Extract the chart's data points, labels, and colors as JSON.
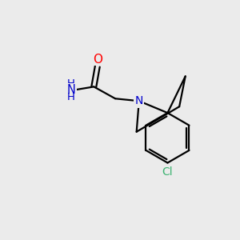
{
  "background_color": "#ebebeb",
  "bond_color": "#000000",
  "atom_colors": {
    "O": "#ff0000",
    "N": "#0000cc",
    "Cl": "#3cb371",
    "C": "#000000"
  },
  "figsize": [
    3.0,
    3.0
  ],
  "dpi": 100
}
